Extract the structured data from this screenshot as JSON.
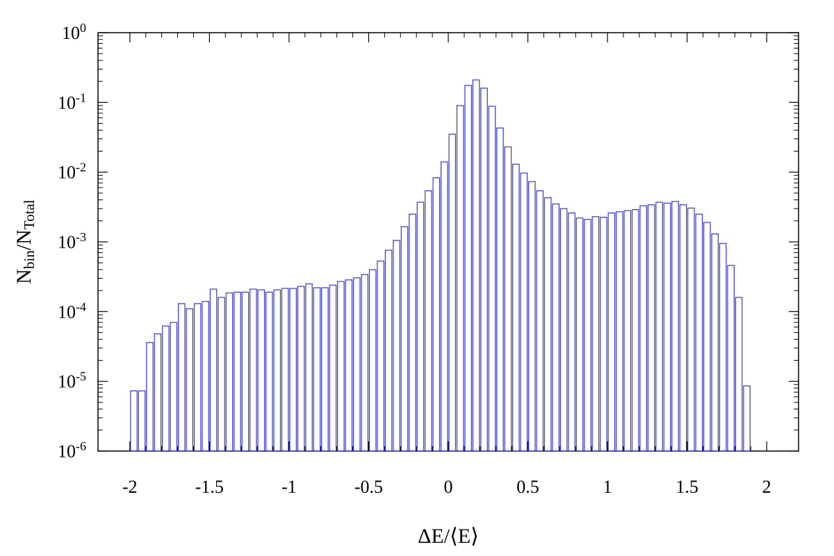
{
  "chart_data": {
    "type": "bar",
    "bar_color": "#3333ee",
    "xlabel": "ΔE/⟨E⟩",
    "ylabel": {
      "base": "N",
      "num_sub": "bin",
      "den_sub": "Total"
    },
    "xlim": [
      -2.2,
      2.2
    ],
    "ylim": [
      1e-06,
      1
    ],
    "y_scale": "log",
    "x_ticks": [
      "-2",
      "-1.5",
      "-1",
      "-0.5",
      "0",
      "0.5",
      "1",
      "1.5",
      "2"
    ],
    "y_ticks": [
      "0",
      "-1",
      "-2",
      "-3",
      "-4",
      "-5",
      "-6"
    ],
    "x_start": -1.975,
    "bin_width": 0.05,
    "values": [
      7.3e-06,
      7.3e-06,
      3.6e-05,
      4.8e-05,
      6.2e-05,
      7e-05,
      0.00013,
      0.00011,
      0.00013,
      0.00014,
      0.00021,
      0.00016,
      0.000185,
      0.00019,
      0.00019,
      0.00021,
      0.000205,
      0.00019,
      0.000205,
      0.000215,
      0.000215,
      0.00023,
      0.00025,
      0.00022,
      0.00022,
      0.00024,
      0.00027,
      0.000285,
      0.000305,
      0.00034,
      0.0004,
      0.00053,
      0.00076,
      0.00105,
      0.00165,
      0.0025,
      0.0037,
      0.0054,
      0.0083,
      0.014,
      0.035,
      0.09,
      0.175,
      0.21,
      0.16,
      0.088,
      0.043,
      0.023,
      0.013,
      0.0097,
      0.0073,
      0.0054,
      0.0043,
      0.0035,
      0.003,
      0.0026,
      0.0022,
      0.0021,
      0.0023,
      0.00225,
      0.0026,
      0.0027,
      0.0028,
      0.0029,
      0.0033,
      0.0034,
      0.0037,
      0.0036,
      0.0038,
      0.0034,
      0.00305,
      0.0025,
      0.0019,
      0.0013,
      0.00095,
      0.00046,
      0.00016,
      8.6e-06
    ]
  }
}
